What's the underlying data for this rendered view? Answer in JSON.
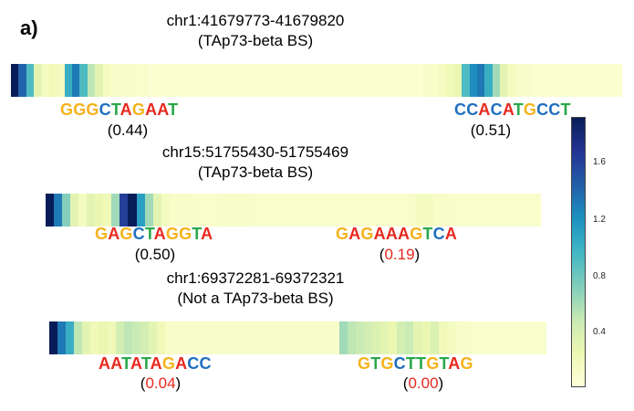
{
  "panel_label": "a)",
  "colors": {
    "A": "#e8281e",
    "C": "#1f6fbf",
    "G": "#f5b21b",
    "T": "#2aa84a",
    "highlight": "#e8281e"
  },
  "colorbar": {
    "colormap": "YlGnBu",
    "ticks": [
      "1.6",
      "1.2",
      "0.8",
      "0.4"
    ]
  },
  "tracks": [
    {
      "title": "chr1:41679773-41679820",
      "subtitle": "(TAp73-beta BS)",
      "cells": [
        1.9,
        1.4,
        0.9,
        0.3,
        0.15,
        0.2,
        0.15,
        1.0,
        1.3,
        0.9,
        0.5,
        0.3,
        0.15,
        0.1,
        0.1,
        0.1,
        0.08,
        0.08,
        0.05,
        0.05,
        0.05,
        0.05,
        0.05,
        0.05,
        0.05,
        0.05,
        0.05,
        0.05,
        0.05,
        0.05,
        0.05,
        0.05,
        0.05,
        0.05,
        0.05,
        0.05,
        0.05,
        0.05,
        0.05,
        0.05,
        0.05,
        0.05,
        0.05,
        0.05,
        0.05,
        0.05,
        0.05,
        0.05,
        0.05,
        0.05,
        0.05,
        0.05,
        0.05,
        0.05,
        0.1,
        0.1,
        0.15,
        0.2,
        0.25,
        0.9,
        1.2,
        1.3,
        1.0,
        0.6,
        0.3,
        0.15,
        0.1,
        0.08,
        0.05,
        0.05,
        0.05,
        0.05,
        0.05,
        0.05,
        0.05,
        0.05,
        0.05,
        0.05,
        0.05,
        0.05
      ],
      "motifs": [
        {
          "seq": "GGGCTAGAAT",
          "score": "0.44",
          "highlight": false
        },
        {
          "seq": "CCACATGCCT",
          "score": "0.51",
          "highlight": false
        }
      ]
    },
    {
      "title": "chr15:51755430-51755469",
      "subtitle": "(TAp73-beta BS)",
      "cells": [
        1.9,
        1.3,
        0.7,
        0.3,
        0.15,
        0.3,
        0.25,
        0.2,
        0.6,
        1.6,
        1.9,
        1.1,
        0.6,
        0.3,
        0.15,
        0.1,
        0.1,
        0.1,
        0.08,
        0.08,
        0.08,
        0.1,
        0.1,
        0.1,
        0.1,
        0.08,
        0.08,
        0.08,
        0.08,
        0.08,
        0.08,
        0.08,
        0.08,
        0.08,
        0.08,
        0.08,
        0.08,
        0.08,
        0.08,
        0.08,
        0.08,
        0.08,
        0.08,
        0.08,
        0.1,
        0.15,
        0.15,
        0.1,
        0.1,
        0.08,
        0.08,
        0.08,
        0.08,
        0.08,
        0.08,
        0.08,
        0.08,
        0.08,
        0.08,
        0.08
      ],
      "motifs": [
        {
          "seq": "GAGCTAGGTA",
          "score": "0.50",
          "highlight": false
        },
        {
          "seq": "GAGAAAGTCA",
          "score": "0.19",
          "highlight": true
        }
      ]
    },
    {
      "title": "chr1:69372281-69372321",
      "subtitle": "(Not a TAp73-beta BS)",
      "cells": [
        1.9,
        1.3,
        1.0,
        0.5,
        0.3,
        0.2,
        0.25,
        0.2,
        0.4,
        0.5,
        0.45,
        0.4,
        0.3,
        0.2,
        0.1,
        0.1,
        0.1,
        0.1,
        0.1,
        0.1,
        0.1,
        0.1,
        0.1,
        0.1,
        0.1,
        0.1,
        0.1,
        0.1,
        0.1,
        0.1,
        0.1,
        0.1,
        0.1,
        0.1,
        0.1,
        0.6,
        0.5,
        0.45,
        0.4,
        0.35,
        0.3,
        0.25,
        0.4,
        0.45,
        0.3,
        0.25,
        0.35,
        0.2,
        0.15,
        0.1,
        0.1,
        0.08,
        0.08,
        0.08,
        0.08,
        0.08,
        0.08,
        0.08,
        0.08,
        0.08
      ],
      "motifs": [
        {
          "seq": "AATATAGACC",
          "score": "0.04",
          "highlight": true
        },
        {
          "seq": "GTGCTTGTAG",
          "score": "0.00",
          "highlight": true
        }
      ]
    }
  ]
}
